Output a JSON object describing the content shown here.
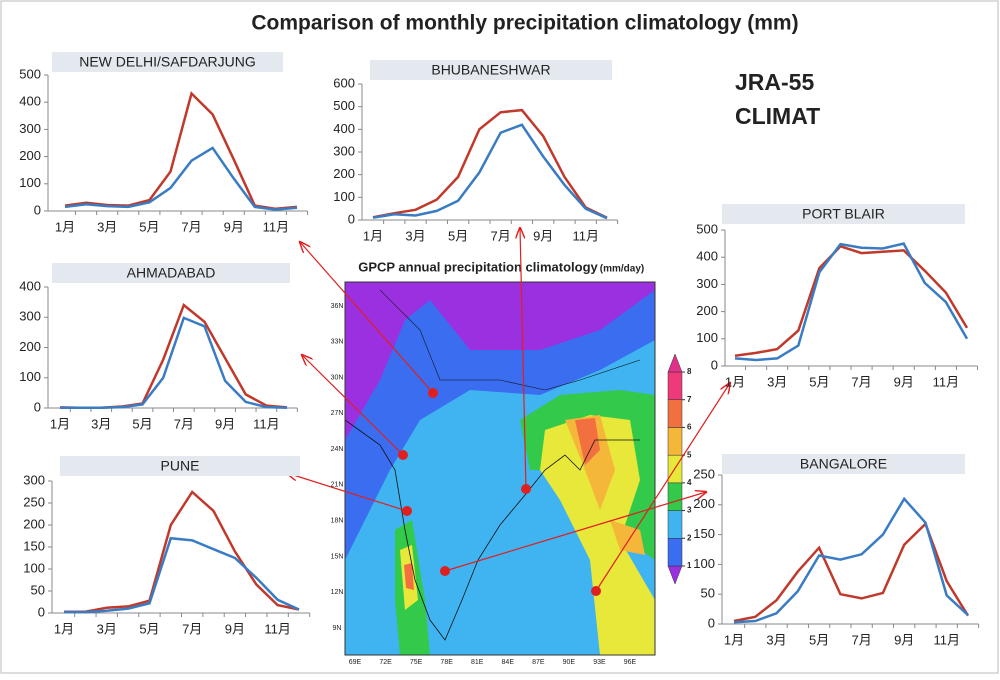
{
  "title": "Comparison of monthly precipitation climatology (mm)",
  "map": {
    "title": "GPCP annual  precipitation climatology",
    "unit": "(mm/day)",
    "lon_labels": [
      "69E",
      "72E",
      "75E",
      "78E",
      "81E",
      "84E",
      "87E",
      "90E",
      "93E",
      "96E"
    ],
    "lat_labels": [
      "9N",
      "12N",
      "15N",
      "18N",
      "21N",
      "24N",
      "27N",
      "30N",
      "33N",
      "36N"
    ],
    "colorbar": {
      "ticks": [
        1,
        2,
        3,
        4,
        5,
        6,
        7,
        8
      ],
      "colors": [
        "#9b30e0",
        "#3a6df0",
        "#3fb4f0",
        "#33c94a",
        "#e8e83a",
        "#f5b73a",
        "#f27040",
        "#ee3a7a",
        "#e0308a"
      ]
    }
  },
  "chart_data": [
    {
      "type": "line",
      "title": "NEW DELHI/SAFDARJUNG",
      "categories": [
        "1月",
        null,
        "3月",
        null,
        "5月",
        null,
        "7月",
        null,
        "9月",
        null,
        "11月",
        null
      ],
      "series": [
        {
          "name": "JRA-55",
          "color": "#c0392b",
          "values": [
            20,
            30,
            22,
            20,
            40,
            145,
            432,
            355,
            190,
            20,
            8,
            15
          ]
        },
        {
          "name": "CLIMAT",
          "color": "#3a7cc3",
          "values": [
            15,
            25,
            18,
            15,
            32,
            85,
            185,
            232,
            120,
            15,
            5,
            12
          ]
        }
      ],
      "ylim": [
        0,
        500
      ],
      "yticks": [
        0,
        100,
        200,
        300,
        400,
        500
      ]
    },
    {
      "type": "line",
      "title": "BHUBANESHWAR",
      "categories": [
        "1月",
        null,
        "3月",
        null,
        "5月",
        null,
        "7月",
        null,
        "9月",
        null,
        "11月",
        null
      ],
      "series": [
        {
          "name": "JRA-55",
          "color": "#c0392b",
          "values": [
            12,
            30,
            45,
            90,
            190,
            400,
            475,
            485,
            370,
            190,
            55,
            10
          ]
        },
        {
          "name": "CLIMAT",
          "color": "#3a7cc3",
          "values": [
            10,
            25,
            20,
            40,
            85,
            210,
            385,
            420,
            280,
            155,
            50,
            8
          ]
        }
      ],
      "ylim": [
        0,
        600
      ],
      "yticks": [
        0,
        100,
        200,
        300,
        400,
        500,
        600
      ]
    },
    {
      "type": "line",
      "title": "AHMADABAD",
      "categories": [
        "1月",
        null,
        "3月",
        null,
        "5月",
        null,
        "7月",
        null,
        "9月",
        null,
        "11月",
        null
      ],
      "series": [
        {
          "name": "JRA-55",
          "color": "#c0392b",
          "values": [
            2,
            1,
            1,
            5,
            15,
            160,
            340,
            285,
            165,
            45,
            8,
            2
          ]
        },
        {
          "name": "CLIMAT",
          "color": "#3a7cc3",
          "values": [
            1,
            1,
            1,
            3,
            12,
            100,
            298,
            270,
            90,
            20,
            3,
            1
          ]
        }
      ],
      "ylim": [
        0,
        400
      ],
      "yticks": [
        0,
        100,
        200,
        300,
        400
      ]
    },
    {
      "type": "line",
      "title": "PORT BLAIR",
      "categories": [
        "1月",
        null,
        "3月",
        null,
        "5月",
        null,
        "7月",
        null,
        "9月",
        null,
        "11月",
        null
      ],
      "series": [
        {
          "name": "JRA-55",
          "color": "#c0392b",
          "values": [
            38,
            48,
            62,
            130,
            360,
            440,
            415,
            420,
            425,
            350,
            270,
            140
          ]
        },
        {
          "name": "CLIMAT",
          "color": "#3a7cc3",
          "values": [
            28,
            22,
            28,
            75,
            345,
            448,
            435,
            432,
            450,
            305,
            235,
            100
          ]
        }
      ],
      "ylim": [
        0,
        500
      ],
      "yticks": [
        0,
        100,
        200,
        300,
        400,
        500
      ]
    },
    {
      "type": "line",
      "title": "PUNE",
      "categories": [
        "1月",
        null,
        "3月",
        null,
        "5月",
        null,
        "7月",
        null,
        "9月",
        null,
        "11月",
        null
      ],
      "series": [
        {
          "name": "JRA-55",
          "color": "#c0392b",
          "values": [
            3,
            3,
            12,
            15,
            28,
            200,
            275,
            232,
            140,
            65,
            18,
            8
          ]
        },
        {
          "name": "CLIMAT",
          "color": "#3a7cc3",
          "values": [
            2,
            2,
            5,
            10,
            22,
            170,
            165,
            145,
            125,
            80,
            30,
            8
          ]
        }
      ],
      "ylim": [
        0,
        300
      ],
      "yticks": [
        0,
        50,
        100,
        150,
        200,
        250,
        300
      ]
    },
    {
      "type": "line",
      "title": "BANGALORE",
      "categories": [
        "1月",
        null,
        "3月",
        null,
        "5月",
        null,
        "7月",
        null,
        "9月",
        null,
        "11月",
        null
      ],
      "series": [
        {
          "name": "JRA-55",
          "color": "#c0392b",
          "values": [
            5,
            12,
            40,
            88,
            128,
            50,
            43,
            52,
            133,
            168,
            72,
            14
          ]
        },
        {
          "name": "CLIMAT",
          "color": "#3a7cc3",
          "values": [
            3,
            5,
            18,
            55,
            115,
            108,
            117,
            150,
            210,
            170,
            48,
            15
          ]
        }
      ],
      "ylim": [
        0,
        250
      ],
      "yticks": [
        0,
        50,
        100,
        150,
        200,
        250
      ]
    }
  ]
}
